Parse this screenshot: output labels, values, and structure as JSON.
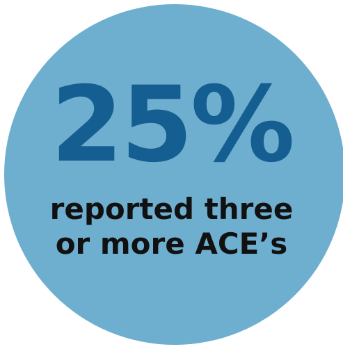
{
  "colors": {
    "circle": "#6eafcf",
    "stat": "#155e91",
    "caption": "#111111",
    "background": "#ffffff"
  },
  "stat": {
    "value": "25%"
  },
  "caption": {
    "line1": "reported three",
    "line2": "or more ACE’s"
  }
}
